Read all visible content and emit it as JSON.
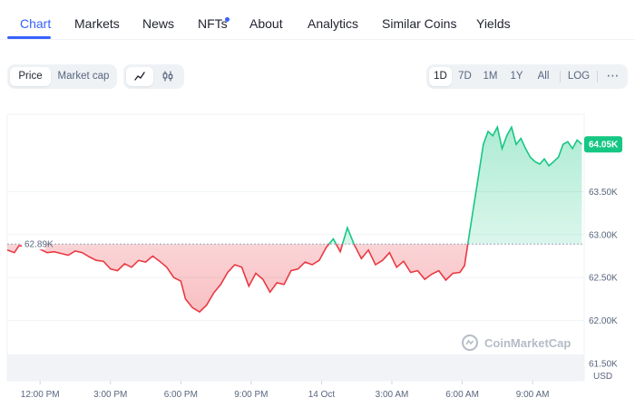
{
  "tabs": [
    {
      "label": "Chart",
      "active": true
    },
    {
      "label": "Markets",
      "active": false
    },
    {
      "label": "News",
      "active": false
    },
    {
      "label": "NFTs",
      "active": false,
      "badge_dot": true
    },
    {
      "label": "About",
      "active": false
    },
    {
      "label": "Analytics",
      "active": false
    },
    {
      "label": "Similar Coins",
      "active": false
    },
    {
      "label": "Yields",
      "active": false
    }
  ],
  "toolbar": {
    "metric_options": [
      {
        "label": "Price",
        "selected": true
      },
      {
        "label": "Market cap",
        "selected": false
      }
    ],
    "chart_styles": [
      {
        "icon": "line-chart-icon",
        "selected": true
      },
      {
        "icon": "candlestick-icon",
        "selected": false
      }
    ],
    "ranges": [
      {
        "label": "1D",
        "selected": true
      },
      {
        "label": "7D",
        "selected": false
      },
      {
        "label": "1M",
        "selected": false
      },
      {
        "label": "1Y",
        "selected": false
      },
      {
        "label": "All",
        "selected": false
      }
    ],
    "log_label": "LOG",
    "more_icon": "more-horizontal-icon"
  },
  "watermark": "CoinMarketCap",
  "colors": {
    "accent": "#3861fb",
    "up": "#16c784",
    "down": "#ea3943"
  },
  "chart_data": {
    "type": "area",
    "baseline": 62890,
    "baseline_label": "62.89K",
    "current_label": "64.05K",
    "y_unit": "USD",
    "ylim": [
      61300,
      64400
    ],
    "y_ticks": [
      {
        "value": 63500,
        "label": "63.50K"
      },
      {
        "value": 63000,
        "label": "63.00K"
      },
      {
        "value": 62500,
        "label": "62.50K"
      },
      {
        "value": 62000,
        "label": "62.00K"
      },
      {
        "value": 61500,
        "label": "61.50K"
      }
    ],
    "x_ticks": [
      "12:00 PM",
      "3:00 PM",
      "6:00 PM",
      "9:00 PM",
      "14 Oct",
      "3:00 AM",
      "6:00 AM",
      "9:00 AM"
    ],
    "x_tick_hours": [
      0,
      3,
      6,
      9,
      12,
      15,
      18,
      21
    ],
    "xlim_hours": [
      -1.4,
      23.2
    ],
    "series": [
      {
        "x_hours": [
          -1.4,
          -1.1,
          -0.9,
          -0.6,
          -0.3,
          0.0,
          0.3,
          0.6,
          0.9,
          1.2,
          1.5,
          1.8,
          2.1,
          2.4,
          2.7,
          3.0,
          3.3,
          3.6,
          3.9,
          4.2,
          4.5,
          4.8,
          5.1,
          5.4,
          5.7,
          6.0,
          6.2,
          6.5,
          6.8,
          7.1,
          7.4,
          7.7,
          8.0,
          8.3,
          8.6,
          8.9,
          9.2,
          9.5,
          9.8,
          10.1,
          10.4,
          10.7,
          11.0,
          11.3,
          11.6,
          11.9,
          12.2,
          12.5,
          12.8,
          13.1,
          13.4,
          13.7,
          14.0,
          14.3,
          14.6,
          14.9,
          15.2,
          15.5,
          15.8,
          16.1,
          16.4,
          16.7,
          17.0,
          17.3,
          17.6,
          17.9,
          18.1,
          18.3,
          18.5,
          18.7,
          18.9,
          19.1,
          19.3,
          19.5,
          19.7,
          19.9,
          20.1,
          20.3,
          20.5,
          20.7,
          20.9,
          21.1,
          21.3,
          21.5,
          21.7,
          21.9,
          22.1,
          22.3,
          22.5,
          22.7,
          22.9,
          23.1
        ],
        "values": [
          62820,
          62790,
          62870,
          62860,
          62890,
          62830,
          62790,
          62800,
          62780,
          62760,
          62810,
          62790,
          62740,
          62700,
          62690,
          62600,
          62580,
          62660,
          62620,
          62700,
          62680,
          62750,
          62690,
          62620,
          62500,
          62460,
          62250,
          62150,
          62100,
          62180,
          62320,
          62420,
          62560,
          62650,
          62620,
          62400,
          62550,
          62480,
          62330,
          62440,
          62420,
          62580,
          62600,
          62680,
          62650,
          62700,
          62850,
          62950,
          62800,
          63080,
          62880,
          62720,
          62820,
          62650,
          62700,
          62790,
          62620,
          62690,
          62560,
          62580,
          62480,
          62540,
          62580,
          62470,
          62550,
          62560,
          62640,
          63000,
          63350,
          63700,
          64050,
          64200,
          64150,
          64250,
          64000,
          64150,
          64250,
          64050,
          64120,
          64000,
          63900,
          63850,
          63820,
          63880,
          63800,
          63850,
          63900,
          64050,
          64080,
          64000,
          64100,
          64050
        ]
      }
    ]
  }
}
